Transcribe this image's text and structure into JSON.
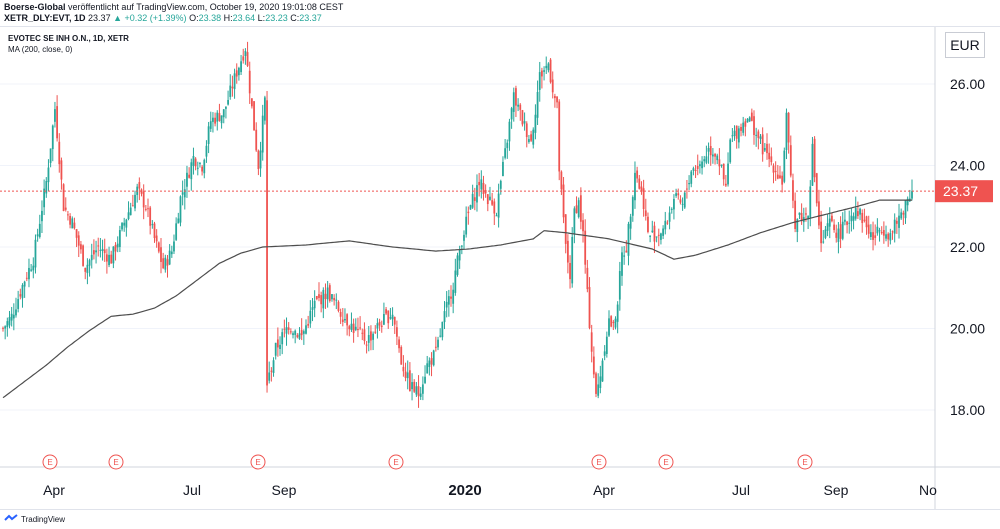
{
  "header": {
    "publisher": "Boerse-Global",
    "published_text": "veröffentlicht auf TradingView.com, October 19, 2020 19:01:08 CEST",
    "symbol_full": "XETR_DLY:EVT, 1D",
    "last": "23.37",
    "change": "▲ +0.32 (+1.39%)",
    "open_label": "O:",
    "open": "23.38",
    "high_label": "H:",
    "high": "23.64",
    "low_label": "L:",
    "low": "23.23",
    "close_label": "C:",
    "close": "23.37"
  },
  "legend": {
    "title": "EVOTEC SE INH O.N., 1D, XETR",
    "indicator": "MA (200, close, 0)"
  },
  "currency_button": "EUR",
  "footer": {
    "brand": "TradingView"
  },
  "colors": {
    "up": "#26a69a",
    "down": "#ef5350",
    "ma": "#4d4d4d",
    "price_line": "#ef5350",
    "earnings_marker": "#ef5350",
    "grid": "#f0f3fa"
  },
  "chart_data": {
    "type": "candlestick",
    "title": "EVOTEC SE INH O.N., 1D, XETR",
    "ylim": [
      16.6,
      27.4
    ],
    "y_ticks": [
      "18.00",
      "20.00",
      "22.00",
      "24.00",
      "26.00"
    ],
    "x_ticks": [
      "Apr",
      "Jul",
      "Sep",
      "2020",
      "Apr",
      "Jul",
      "Sep",
      "No"
    ],
    "x_ticks_bold": [
      "2020"
    ],
    "last_price_label": "23.37",
    "last_price": 23.37,
    "earnings_markers": [
      "E",
      "E",
      "E",
      "E",
      "E",
      "E",
      "E"
    ],
    "close_path_keypoints": [
      [
        0,
        20.0
      ],
      [
        4,
        20.3
      ],
      [
        10,
        21.2
      ],
      [
        14,
        21.7
      ],
      [
        20,
        23.6
      ],
      [
        24,
        25.4
      ],
      [
        28,
        23.0
      ],
      [
        32,
        22.6
      ],
      [
        38,
        21.5
      ],
      [
        44,
        22.0
      ],
      [
        50,
        21.7
      ],
      [
        56,
        22.6
      ],
      [
        62,
        23.4
      ],
      [
        66,
        23.0
      ],
      [
        70,
        22.2
      ],
      [
        74,
        21.5
      ],
      [
        78,
        21.9
      ],
      [
        82,
        23.2
      ],
      [
        88,
        24.2
      ],
      [
        92,
        24.0
      ],
      [
        96,
        25.1
      ],
      [
        102,
        25.3
      ],
      [
        108,
        26.3
      ],
      [
        112,
        26.9
      ],
      [
        115,
        25.4
      ],
      [
        118,
        24.0
      ],
      [
        121,
        25.6
      ],
      [
        122,
        18.6
      ],
      [
        126,
        19.5
      ],
      [
        132,
        20.1
      ],
      [
        138,
        19.8
      ],
      [
        144,
        20.6
      ],
      [
        150,
        20.9
      ],
      [
        156,
        20.4
      ],
      [
        162,
        20.0
      ],
      [
        168,
        19.7
      ],
      [
        174,
        20.1
      ],
      [
        180,
        20.4
      ],
      [
        184,
        19.2
      ],
      [
        188,
        18.6
      ],
      [
        192,
        18.4
      ],
      [
        196,
        19.1
      ],
      [
        200,
        19.4
      ],
      [
        204,
        20.3
      ],
      [
        208,
        21.1
      ],
      [
        212,
        22.2
      ],
      [
        216,
        23.0
      ],
      [
        220,
        23.6
      ],
      [
        224,
        23.2
      ],
      [
        228,
        22.9
      ],
      [
        232,
        24.3
      ],
      [
        236,
        25.7
      ],
      [
        240,
        25.1
      ],
      [
        244,
        24.6
      ],
      [
        248,
        26.2
      ],
      [
        252,
        26.5
      ],
      [
        254,
        25.9
      ],
      [
        256,
        25.4
      ],
      [
        257,
        23.9
      ],
      [
        260,
        22.0
      ],
      [
        262,
        21.3
      ],
      [
        264,
        22.9
      ],
      [
        266,
        23.1
      ],
      [
        268,
        22.3
      ],
      [
        270,
        20.8
      ],
      [
        272,
        19.5
      ],
      [
        274,
        18.3
      ],
      [
        276,
        18.9
      ],
      [
        278,
        19.6
      ],
      [
        280,
        20.2
      ],
      [
        282,
        20.0
      ],
      [
        284,
        20.7
      ],
      [
        286,
        21.8
      ],
      [
        288,
        22.0
      ],
      [
        290,
        22.9
      ],
      [
        292,
        23.9
      ],
      [
        294,
        23.5
      ],
      [
        296,
        23.1
      ],
      [
        298,
        22.3
      ],
      [
        302,
        22.3
      ],
      [
        306,
        22.5
      ],
      [
        310,
        23.2
      ],
      [
        314,
        23.0
      ],
      [
        318,
        23.9
      ],
      [
        322,
        24.0
      ],
      [
        326,
        24.4
      ],
      [
        330,
        24.3
      ],
      [
        334,
        23.4
      ],
      [
        336,
        24.6
      ],
      [
        340,
        24.9
      ],
      [
        344,
        25.2
      ],
      [
        348,
        24.8
      ],
      [
        352,
        24.3
      ],
      [
        356,
        24.0
      ],
      [
        360,
        23.6
      ],
      [
        362,
        25.2
      ],
      [
        364,
        23.6
      ],
      [
        366,
        22.6
      ],
      [
        368,
        22.8
      ],
      [
        370,
        22.7
      ],
      [
        372,
        22.9
      ],
      [
        374,
        24.4
      ],
      [
        376,
        23.1
      ],
      [
        378,
        22.0
      ],
      [
        382,
        22.6
      ],
      [
        386,
        22.3
      ],
      [
        390,
        22.6
      ],
      [
        394,
        23.0
      ],
      [
        398,
        22.6
      ],
      [
        402,
        22.2
      ],
      [
        406,
        22.5
      ],
      [
        410,
        22.3
      ],
      [
        414,
        22.7
      ],
      [
        418,
        23.2
      ],
      [
        420,
        23.37
      ]
    ],
    "ma200_keypoints": [
      [
        0,
        18.3
      ],
      [
        10,
        18.7
      ],
      [
        20,
        19.1
      ],
      [
        30,
        19.55
      ],
      [
        40,
        19.95
      ],
      [
        50,
        20.3
      ],
      [
        60,
        20.35
      ],
      [
        70,
        20.5
      ],
      [
        80,
        20.8
      ],
      [
        90,
        21.2
      ],
      [
        100,
        21.6
      ],
      [
        110,
        21.85
      ],
      [
        120,
        22.0
      ],
      [
        140,
        22.05
      ],
      [
        160,
        22.15
      ],
      [
        180,
        22.0
      ],
      [
        200,
        21.9
      ],
      [
        215,
        21.95
      ],
      [
        230,
        22.05
      ],
      [
        245,
        22.2
      ],
      [
        250,
        22.4
      ],
      [
        260,
        22.35
      ],
      [
        280,
        22.2
      ],
      [
        300,
        21.95
      ],
      [
        310,
        21.7
      ],
      [
        320,
        21.8
      ],
      [
        335,
        22.05
      ],
      [
        350,
        22.35
      ],
      [
        365,
        22.6
      ],
      [
        380,
        22.8
      ],
      [
        395,
        23.0
      ],
      [
        405,
        23.15
      ],
      [
        420,
        23.15
      ]
    ]
  }
}
